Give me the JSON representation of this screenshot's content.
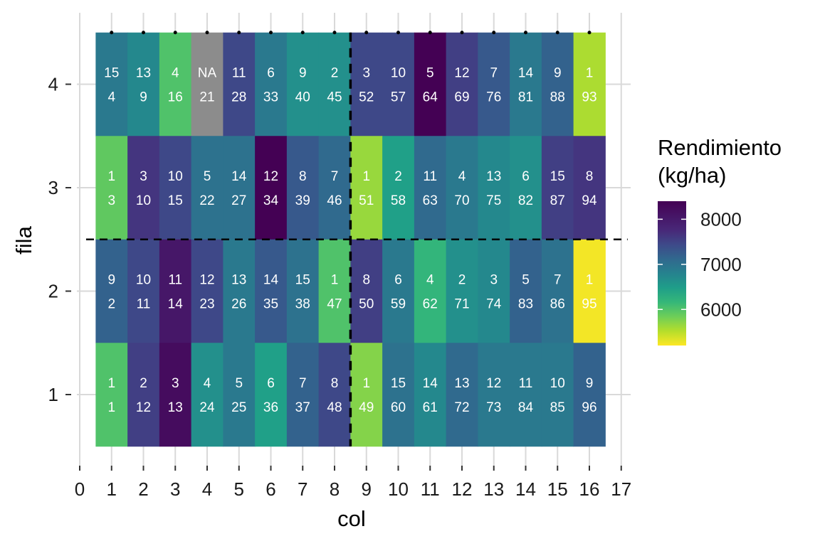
{
  "chart_data": {
    "type": "heatmap",
    "xlabel": "col",
    "ylabel": "fila",
    "x_ticks": [
      0,
      1,
      2,
      3,
      4,
      5,
      6,
      7,
      8,
      9,
      10,
      11,
      12,
      13,
      14,
      15,
      16,
      17
    ],
    "y_ticks": [
      1,
      2,
      3,
      4
    ],
    "xlim": [
      0,
      17
    ],
    "ylim": [
      0.5,
      4.5
    ],
    "grid": true,
    "legend": {
      "title_lines": [
        "Rendimiento",
        "(kg/ha)"
      ],
      "placement": "right",
      "min": 5200,
      "max": 8400,
      "ticks": [
        6000,
        7000,
        8000
      ],
      "palette": "viridis-reversed"
    },
    "reference_lines": {
      "vertical_x": 8.5,
      "horizontal_y": 2.5,
      "style": "dashed"
    },
    "top_markers": "dots at each column from 1 to 16 on the top edge",
    "cells": [
      {
        "row": 4,
        "col": 1,
        "top": "15",
        "bottom": "4",
        "value": 7100
      },
      {
        "row": 4,
        "col": 2,
        "top": "13",
        "bottom": "9",
        "value": 6900
      },
      {
        "row": 4,
        "col": 3,
        "top": "4",
        "bottom": "16",
        "value": 6100
      },
      {
        "row": 4,
        "col": 4,
        "top": "NA",
        "bottom": "21",
        "value": null
      },
      {
        "row": 4,
        "col": 5,
        "top": "11",
        "bottom": "28",
        "value": 7700
      },
      {
        "row": 4,
        "col": 6,
        "top": "6",
        "bottom": "33",
        "value": 7100
      },
      {
        "row": 4,
        "col": 7,
        "top": "9",
        "bottom": "40",
        "value": 6800
      },
      {
        "row": 4,
        "col": 8,
        "top": "2",
        "bottom": "45",
        "value": 6800
      },
      {
        "row": 4,
        "col": 9,
        "top": "3",
        "bottom": "52",
        "value": 7700
      },
      {
        "row": 4,
        "col": 10,
        "top": "10",
        "bottom": "57",
        "value": 7700
      },
      {
        "row": 4,
        "col": 11,
        "top": "5",
        "bottom": "64",
        "value": 8400
      },
      {
        "row": 4,
        "col": 12,
        "top": "12",
        "bottom": "69",
        "value": 7800
      },
      {
        "row": 4,
        "col": 13,
        "top": "7",
        "bottom": "76",
        "value": 7500
      },
      {
        "row": 4,
        "col": 14,
        "top": "14",
        "bottom": "81",
        "value": 7100
      },
      {
        "row": 4,
        "col": 15,
        "top": "9",
        "bottom": "88",
        "value": 7400
      },
      {
        "row": 4,
        "col": 16,
        "top": "1",
        "bottom": "93",
        "value": 5600
      },
      {
        "row": 3,
        "col": 1,
        "top": "1",
        "bottom": "3",
        "value": 6000
      },
      {
        "row": 3,
        "col": 2,
        "top": "3",
        "bottom": "10",
        "value": 7900
      },
      {
        "row": 3,
        "col": 3,
        "top": "10",
        "bottom": "15",
        "value": 7700
      },
      {
        "row": 3,
        "col": 4,
        "top": "5",
        "bottom": "22",
        "value": 7200
      },
      {
        "row": 3,
        "col": 5,
        "top": "14",
        "bottom": "27",
        "value": 7200
      },
      {
        "row": 3,
        "col": 6,
        "top": "12",
        "bottom": "34",
        "value": 8400
      },
      {
        "row": 3,
        "col": 7,
        "top": "8",
        "bottom": "39",
        "value": 7500
      },
      {
        "row": 3,
        "col": 8,
        "top": "7",
        "bottom": "46",
        "value": 7300
      },
      {
        "row": 3,
        "col": 9,
        "top": "1",
        "bottom": "51",
        "value": 5700
      },
      {
        "row": 3,
        "col": 10,
        "top": "2",
        "bottom": "58",
        "value": 6600
      },
      {
        "row": 3,
        "col": 11,
        "top": "11",
        "bottom": "63",
        "value": 7300
      },
      {
        "row": 3,
        "col": 12,
        "top": "4",
        "bottom": "70",
        "value": 7100
      },
      {
        "row": 3,
        "col": 13,
        "top": "13",
        "bottom": "75",
        "value": 6900
      },
      {
        "row": 3,
        "col": 14,
        "top": "6",
        "bottom": "82",
        "value": 6800
      },
      {
        "row": 3,
        "col": 15,
        "top": "15",
        "bottom": "87",
        "value": 7800
      },
      {
        "row": 3,
        "col": 16,
        "top": "8",
        "bottom": "94",
        "value": 7900
      },
      {
        "row": 2,
        "col": 1,
        "top": "9",
        "bottom": "2",
        "value": 7400
      },
      {
        "row": 2,
        "col": 2,
        "top": "10",
        "bottom": "11",
        "value": 7700
      },
      {
        "row": 2,
        "col": 3,
        "top": "11",
        "bottom": "14",
        "value": 8200
      },
      {
        "row": 2,
        "col": 4,
        "top": "12",
        "bottom": "23",
        "value": 7700
      },
      {
        "row": 2,
        "col": 5,
        "top": "13",
        "bottom": "26",
        "value": 7100
      },
      {
        "row": 2,
        "col": 6,
        "top": "14",
        "bottom": "35",
        "value": 7500
      },
      {
        "row": 2,
        "col": 7,
        "top": "15",
        "bottom": "38",
        "value": 7200
      },
      {
        "row": 2,
        "col": 8,
        "top": "1",
        "bottom": "47",
        "value": 6100
      },
      {
        "row": 2,
        "col": 9,
        "top": "8",
        "bottom": "50",
        "value": 7800
      },
      {
        "row": 2,
        "col": 10,
        "top": "6",
        "bottom": "59",
        "value": 7100
      },
      {
        "row": 2,
        "col": 11,
        "top": "4",
        "bottom": "62",
        "value": 6300
      },
      {
        "row": 2,
        "col": 12,
        "top": "2",
        "bottom": "71",
        "value": 6800
      },
      {
        "row": 2,
        "col": 13,
        "top": "3",
        "bottom": "74",
        "value": 6900
      },
      {
        "row": 2,
        "col": 14,
        "top": "5",
        "bottom": "83",
        "value": 7400
      },
      {
        "row": 2,
        "col": 15,
        "top": "7",
        "bottom": "86",
        "value": 7200
      },
      {
        "row": 2,
        "col": 16,
        "top": "1",
        "bottom": "95",
        "value": 5250
      },
      {
        "row": 1,
        "col": 1,
        "top": "1",
        "bottom": "1",
        "value": 6100
      },
      {
        "row": 1,
        "col": 2,
        "top": "2",
        "bottom": "12",
        "value": 7800
      },
      {
        "row": 1,
        "col": 3,
        "top": "3",
        "bottom": "13",
        "value": 8300
      },
      {
        "row": 1,
        "col": 4,
        "top": "4",
        "bottom": "24",
        "value": 6800
      },
      {
        "row": 1,
        "col": 5,
        "top": "5",
        "bottom": "25",
        "value": 7100
      },
      {
        "row": 1,
        "col": 6,
        "top": "6",
        "bottom": "36",
        "value": 6600
      },
      {
        "row": 1,
        "col": 7,
        "top": "7",
        "bottom": "37",
        "value": 7400
      },
      {
        "row": 1,
        "col": 8,
        "top": "8",
        "bottom": "48",
        "value": 7700
      },
      {
        "row": 1,
        "col": 9,
        "top": "1",
        "bottom": "49",
        "value": 5800
      },
      {
        "row": 1,
        "col": 10,
        "top": "15",
        "bottom": "60",
        "value": 7200
      },
      {
        "row": 1,
        "col": 11,
        "top": "14",
        "bottom": "61",
        "value": 6900
      },
      {
        "row": 1,
        "col": 12,
        "top": "13",
        "bottom": "72",
        "value": 7300
      },
      {
        "row": 1,
        "col": 13,
        "top": "12",
        "bottom": "73",
        "value": 7100
      },
      {
        "row": 1,
        "col": 14,
        "top": "11",
        "bottom": "84",
        "value": 7100
      },
      {
        "row": 1,
        "col": 15,
        "top": "10",
        "bottom": "85",
        "value": 7100
      },
      {
        "row": 1,
        "col": 16,
        "top": "9",
        "bottom": "96",
        "value": 7400
      }
    ],
    "na_color": "#8c8c8c"
  }
}
